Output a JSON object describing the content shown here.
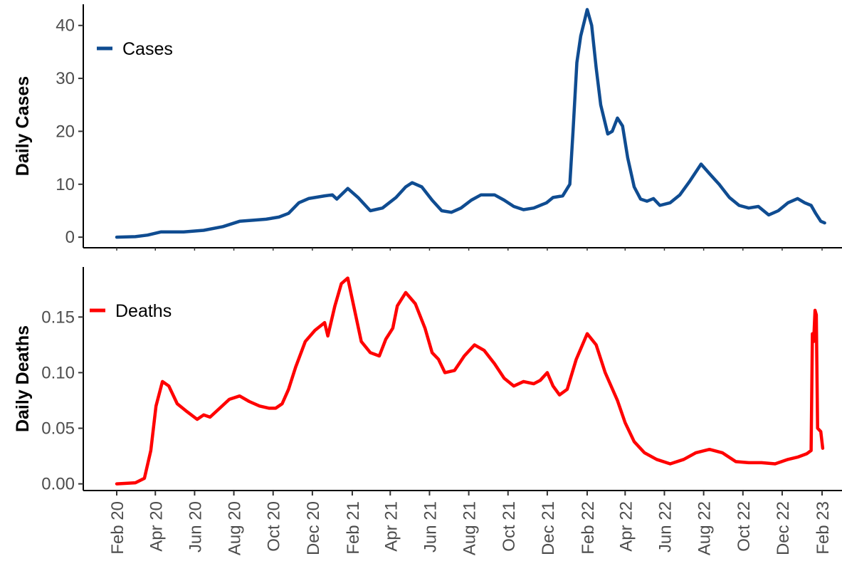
{
  "chart_data": [
    {
      "type": "line",
      "ylabel": "Daily Cases",
      "ylim": [
        -2,
        44
      ],
      "yticks": [
        0,
        10,
        20,
        30,
        40
      ],
      "x_ticks": [
        "2020-02-01",
        "2020-04-01",
        "2020-06-01",
        "2020-08-01",
        "2020-10-01",
        "2020-12-01",
        "2021-02-01",
        "2021-04-01",
        "2021-06-01",
        "2021-08-01",
        "2021-10-01",
        "2021-12-01",
        "2022-02-01",
        "2022-04-01",
        "2022-06-01",
        "2022-08-01",
        "2022-10-01",
        "2022-12-01",
        "2023-02-01"
      ],
      "legend_position": "top-left",
      "series": [
        {
          "name": "Cases",
          "color": "#0f4c91",
          "points": [
            [
              "2020-02-01",
              0.0
            ],
            [
              "2020-03-01",
              0.1
            ],
            [
              "2020-03-20",
              0.4
            ],
            [
              "2020-04-10",
              1.0
            ],
            [
              "2020-05-15",
              1.0
            ],
            [
              "2020-06-15",
              1.3
            ],
            [
              "2020-07-15",
              2.0
            ],
            [
              "2020-08-10",
              3.0
            ],
            [
              "2020-09-01",
              3.2
            ],
            [
              "2020-09-20",
              3.4
            ],
            [
              "2020-10-10",
              3.8
            ],
            [
              "2020-10-25",
              4.5
            ],
            [
              "2020-11-10",
              6.5
            ],
            [
              "2020-11-25",
              7.3
            ],
            [
              "2020-12-20",
              7.8
            ],
            [
              "2021-01-01",
              8.0
            ],
            [
              "2021-01-08",
              7.2
            ],
            [
              "2021-01-25",
              9.2
            ],
            [
              "2021-02-10",
              7.5
            ],
            [
              "2021-03-01",
              5.0
            ],
            [
              "2021-03-20",
              5.5
            ],
            [
              "2021-04-10",
              7.5
            ],
            [
              "2021-04-25",
              9.5
            ],
            [
              "2021-05-05",
              10.3
            ],
            [
              "2021-05-20",
              9.5
            ],
            [
              "2021-06-05",
              7.0
            ],
            [
              "2021-06-20",
              5.0
            ],
            [
              "2021-07-05",
              4.7
            ],
            [
              "2021-07-20",
              5.5
            ],
            [
              "2021-08-05",
              7.0
            ],
            [
              "2021-08-20",
              8.0
            ],
            [
              "2021-09-10",
              8.0
            ],
            [
              "2021-09-25",
              7.0
            ],
            [
              "2021-10-10",
              5.8
            ],
            [
              "2021-10-25",
              5.2
            ],
            [
              "2021-11-10",
              5.5
            ],
            [
              "2021-11-30",
              6.5
            ],
            [
              "2021-12-10",
              7.5
            ],
            [
              "2021-12-25",
              7.8
            ],
            [
              "2022-01-05",
              10.0
            ],
            [
              "2022-01-10",
              20.0
            ],
            [
              "2022-01-16",
              33.0
            ],
            [
              "2022-01-22",
              38.0
            ],
            [
              "2022-01-28",
              41.0
            ],
            [
              "2022-02-01",
              43.0
            ],
            [
              "2022-02-08",
              40.0
            ],
            [
              "2022-02-15",
              32.0
            ],
            [
              "2022-02-22",
              25.0
            ],
            [
              "2022-03-05",
              19.5
            ],
            [
              "2022-03-12",
              20.0
            ],
            [
              "2022-03-20",
              22.5
            ],
            [
              "2022-03-28",
              21.0
            ],
            [
              "2022-04-05",
              15.0
            ],
            [
              "2022-04-15",
              9.5
            ],
            [
              "2022-04-25",
              7.2
            ],
            [
              "2022-05-05",
              6.8
            ],
            [
              "2022-05-15",
              7.3
            ],
            [
              "2022-05-25",
              6.0
            ],
            [
              "2022-06-10",
              6.5
            ],
            [
              "2022-06-25",
              8.0
            ],
            [
              "2022-07-10",
              10.5
            ],
            [
              "2022-07-28",
              13.8
            ],
            [
              "2022-08-10",
              12.0
            ],
            [
              "2022-08-25",
              10.0
            ],
            [
              "2022-09-10",
              7.5
            ],
            [
              "2022-09-25",
              6.0
            ],
            [
              "2022-10-10",
              5.5
            ],
            [
              "2022-10-25",
              5.8
            ],
            [
              "2022-11-10",
              4.2
            ],
            [
              "2022-11-25",
              5.0
            ],
            [
              "2022-12-10",
              6.5
            ],
            [
              "2022-12-25",
              7.3
            ],
            [
              "2023-01-05",
              6.5
            ],
            [
              "2023-01-15",
              6.0
            ],
            [
              "2023-01-22",
              4.5
            ],
            [
              "2023-01-30",
              3.0
            ],
            [
              "2023-02-05",
              2.7
            ]
          ]
        }
      ]
    },
    {
      "type": "line",
      "ylabel": "Daily Deaths",
      "ylim": [
        -0.006,
        0.195
      ],
      "yticks": [
        "0.00",
        "0.05",
        "0.10",
        "0.15"
      ],
      "x_ticks": [
        "2020-02-01",
        "2020-04-01",
        "2020-06-01",
        "2020-08-01",
        "2020-10-01",
        "2020-12-01",
        "2021-02-01",
        "2021-04-01",
        "2021-06-01",
        "2021-08-01",
        "2021-10-01",
        "2021-12-01",
        "2022-02-01",
        "2022-04-01",
        "2022-06-01",
        "2022-08-01",
        "2022-10-01",
        "2022-12-01",
        "2023-02-01"
      ],
      "x_tick_labels": [
        "Feb 20",
        "Apr 20",
        "Jun 20",
        "Aug 20",
        "Oct 20",
        "Dec 20",
        "Feb 21",
        "Apr 21",
        "Jun 21",
        "Aug 21",
        "Oct 21",
        "Dec 21",
        "Feb 22",
        "Apr 22",
        "Jun 22",
        "Aug 22",
        "Oct 22",
        "Dec 22",
        "Feb 23"
      ],
      "legend_position": "top-left",
      "series": [
        {
          "name": "Deaths",
          "color": "#ff0000",
          "points": [
            [
              "2020-02-01",
              0.0
            ],
            [
              "2020-03-01",
              0.001
            ],
            [
              "2020-03-15",
              0.005
            ],
            [
              "2020-03-25",
              0.03
            ],
            [
              "2020-04-02",
              0.07
            ],
            [
              "2020-04-12",
              0.092
            ],
            [
              "2020-04-22",
              0.088
            ],
            [
              "2020-05-05",
              0.072
            ],
            [
              "2020-05-20",
              0.065
            ],
            [
              "2020-06-05",
              0.058
            ],
            [
              "2020-06-15",
              0.062
            ],
            [
              "2020-06-25",
              0.06
            ],
            [
              "2020-07-10",
              0.068
            ],
            [
              "2020-07-25",
              0.076
            ],
            [
              "2020-08-10",
              0.079
            ],
            [
              "2020-08-25",
              0.074
            ],
            [
              "2020-09-10",
              0.07
            ],
            [
              "2020-09-25",
              0.068
            ],
            [
              "2020-10-05",
              0.068
            ],
            [
              "2020-10-15",
              0.072
            ],
            [
              "2020-10-25",
              0.085
            ],
            [
              "2020-11-05",
              0.105
            ],
            [
              "2020-11-20",
              0.128
            ],
            [
              "2020-12-05",
              0.138
            ],
            [
              "2020-12-20",
              0.145
            ],
            [
              "2020-12-25",
              0.133
            ],
            [
              "2021-01-05",
              0.16
            ],
            [
              "2021-01-15",
              0.18
            ],
            [
              "2021-01-25",
              0.185
            ],
            [
              "2021-02-05",
              0.155
            ],
            [
              "2021-02-15",
              0.128
            ],
            [
              "2021-03-01",
              0.118
            ],
            [
              "2021-03-15",
              0.115
            ],
            [
              "2021-03-25",
              0.13
            ],
            [
              "2021-04-05",
              0.14
            ],
            [
              "2021-04-12",
              0.16
            ],
            [
              "2021-04-25",
              0.172
            ],
            [
              "2021-05-10",
              0.162
            ],
            [
              "2021-05-25",
              0.14
            ],
            [
              "2021-06-05",
              0.118
            ],
            [
              "2021-06-15",
              0.112
            ],
            [
              "2021-06-25",
              0.1
            ],
            [
              "2021-07-10",
              0.102
            ],
            [
              "2021-07-25",
              0.115
            ],
            [
              "2021-08-10",
              0.125
            ],
            [
              "2021-08-25",
              0.12
            ],
            [
              "2021-09-10",
              0.108
            ],
            [
              "2021-09-25",
              0.095
            ],
            [
              "2021-10-10",
              0.088
            ],
            [
              "2021-10-25",
              0.092
            ],
            [
              "2021-11-10",
              0.09
            ],
            [
              "2021-11-20",
              0.093
            ],
            [
              "2021-12-01",
              0.1
            ],
            [
              "2021-12-10",
              0.088
            ],
            [
              "2021-12-20",
              0.08
            ],
            [
              "2022-01-01",
              0.085
            ],
            [
              "2022-01-15",
              0.112
            ],
            [
              "2022-02-01",
              0.135
            ],
            [
              "2022-02-15",
              0.125
            ],
            [
              "2022-03-01",
              0.1
            ],
            [
              "2022-03-20",
              0.075
            ],
            [
              "2022-04-01",
              0.055
            ],
            [
              "2022-04-15",
              0.038
            ],
            [
              "2022-05-01",
              0.028
            ],
            [
              "2022-05-20",
              0.022
            ],
            [
              "2022-06-10",
              0.018
            ],
            [
              "2022-07-01",
              0.022
            ],
            [
              "2022-07-20",
              0.028
            ],
            [
              "2022-08-10",
              0.031
            ],
            [
              "2022-08-30",
              0.028
            ],
            [
              "2022-09-20",
              0.02
            ],
            [
              "2022-10-10",
              0.019
            ],
            [
              "2022-10-30",
              0.019
            ],
            [
              "2022-11-20",
              0.018
            ],
            [
              "2022-12-10",
              0.022
            ],
            [
              "2022-12-25",
              0.024
            ],
            [
              "2023-01-08",
              0.027
            ],
            [
              "2023-01-15",
              0.03
            ],
            [
              "2023-01-17",
              0.135
            ],
            [
              "2023-01-19",
              0.128
            ],
            [
              "2023-01-21",
              0.156
            ],
            [
              "2023-01-23",
              0.152
            ],
            [
              "2023-01-25",
              0.05
            ],
            [
              "2023-01-30",
              0.047
            ],
            [
              "2023-02-02",
              0.032
            ]
          ]
        }
      ]
    }
  ]
}
